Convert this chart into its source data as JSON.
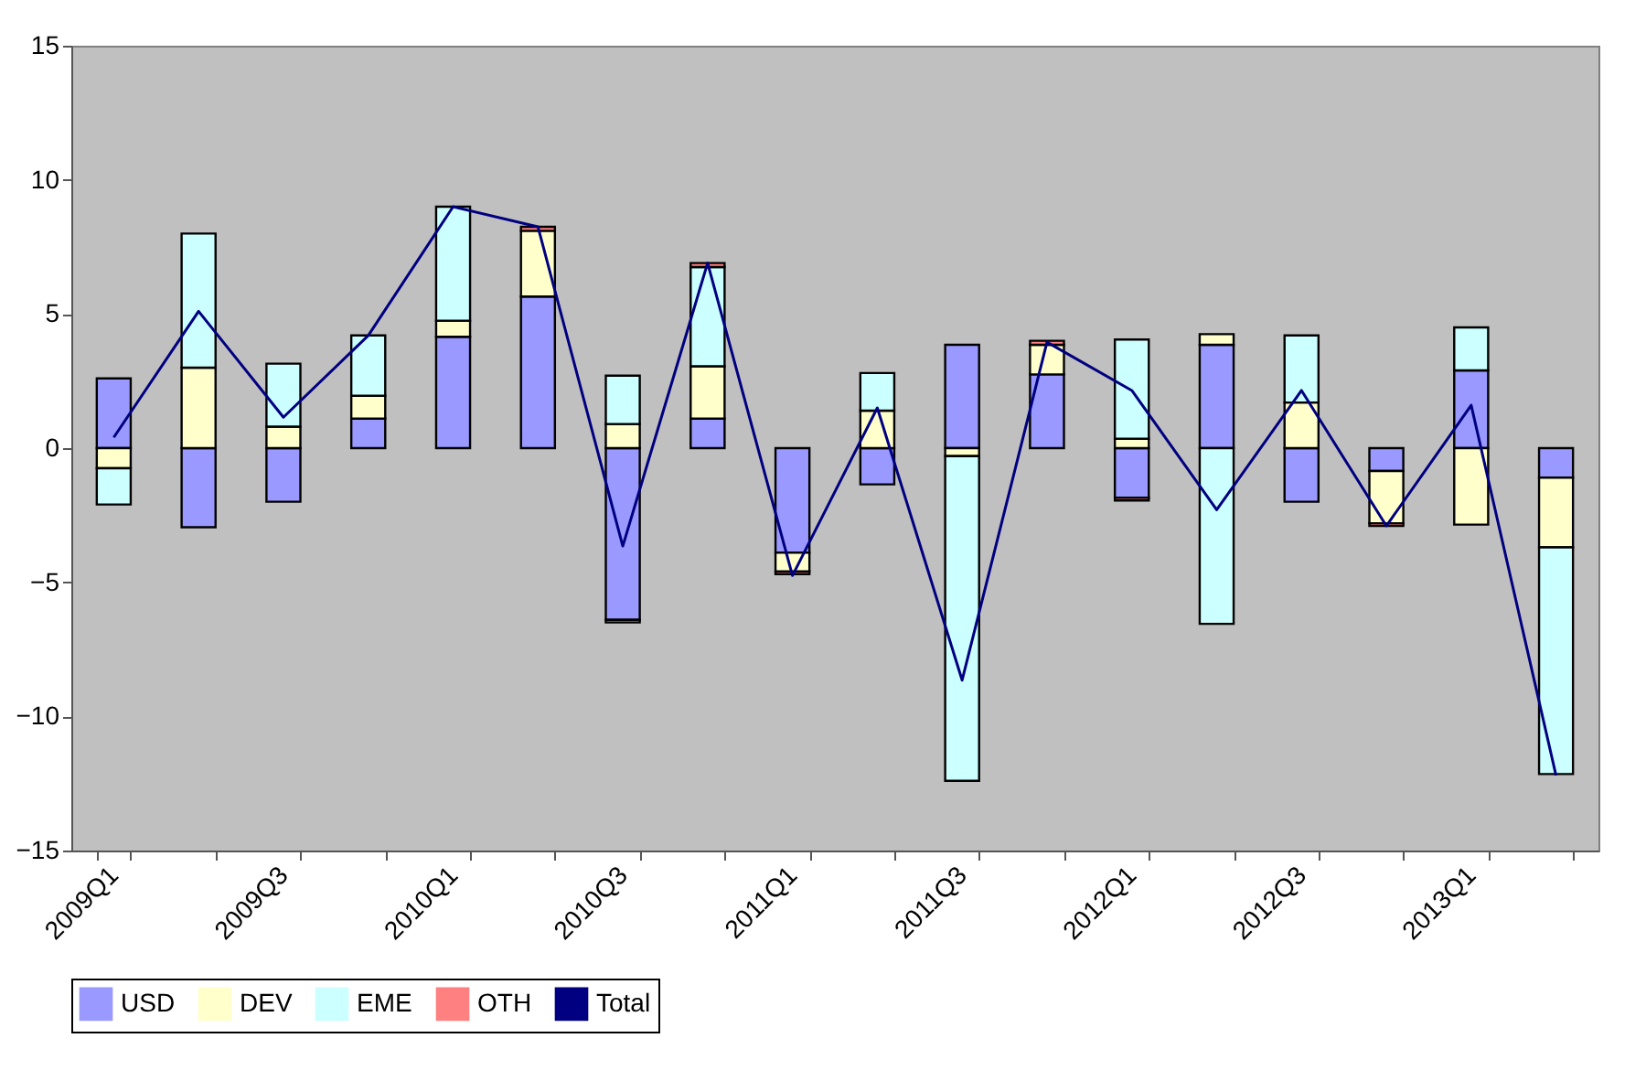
{
  "chart_data": {
    "type": "bar",
    "stacked": true,
    "categories": [
      "2009Q1",
      null,
      "2009Q3",
      null,
      "2010Q1",
      null,
      "2010Q3",
      null,
      "2011Q1",
      null,
      "2011Q3",
      null,
      "2012Q1",
      null,
      "2012Q3",
      null,
      "2013Q1",
      null
    ],
    "series": [
      {
        "name": "USD",
        "color": "#9999ff",
        "values": [
          2.6,
          -2.95,
          -2.0,
          1.1,
          4.15,
          5.65,
          -6.4,
          1.1,
          -3.9,
          -1.35,
          3.85,
          2.75,
          -1.85,
          3.85,
          -2.0,
          -0.85,
          2.9,
          -1.1
        ]
      },
      {
        "name": "DEV",
        "color": "#ffffcc",
        "values": [
          -0.75,
          3.0,
          0.8,
          0.85,
          0.6,
          2.45,
          0.9,
          1.95,
          -0.7,
          1.4,
          -0.3,
          1.1,
          0.35,
          0.4,
          1.7,
          -1.95,
          -2.85,
          -2.6
        ]
      },
      {
        "name": "EME",
        "color": "#ccffff",
        "values": [
          -1.35,
          5.0,
          2.35,
          2.25,
          4.25,
          null,
          1.8,
          3.7,
          null,
          1.4,
          -12.1,
          null,
          3.7,
          -6.55,
          2.5,
          null,
          1.6,
          -8.45
        ]
      },
      {
        "name": "OTH",
        "color": "#ff8080",
        "values": [
          null,
          null,
          null,
          null,
          null,
          0.15,
          -0.1,
          0.15,
          -0.1,
          null,
          null,
          0.15,
          -0.1,
          null,
          null,
          -0.1,
          null,
          null
        ]
      },
      {
        "name": "Total",
        "type": "line",
        "color": "#000080",
        "values": [
          0.4,
          5.1,
          1.15,
          4.2,
          9.0,
          8.25,
          -3.65,
          6.9,
          -4.75,
          1.5,
          -8.65,
          3.95,
          2.15,
          -2.3,
          2.15,
          -2.9,
          1.6,
          -12.2
        ]
      }
    ],
    "ylim": [
      -15,
      15
    ],
    "yticks": [
      -15,
      -10,
      -5,
      0,
      5,
      10,
      15
    ],
    "legend": "bottom"
  }
}
